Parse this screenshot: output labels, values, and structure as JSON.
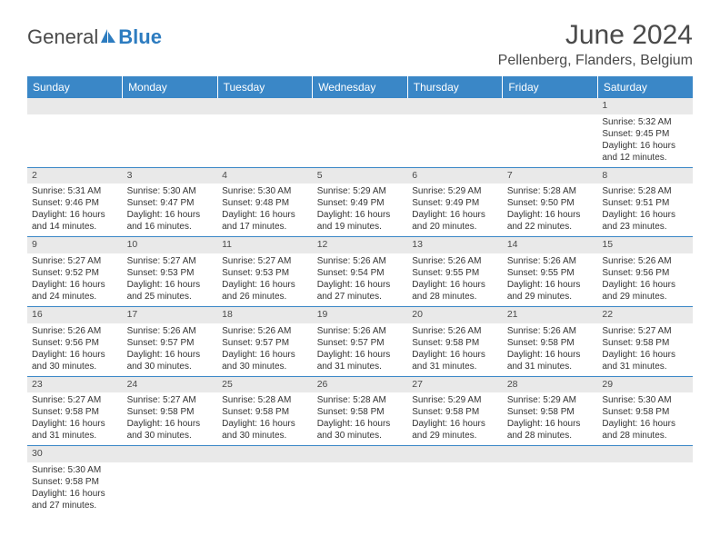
{
  "brand": {
    "part1": "General",
    "part2": "Blue"
  },
  "title": "June 2024",
  "location": "Pellenberg, Flanders, Belgium",
  "colors": {
    "header_bg": "#3a87c7",
    "header_text": "#ffffff",
    "daynum_bg": "#e9e9e9",
    "border": "#3a87c7",
    "brand_accent": "#2d7cc0",
    "text": "#333333"
  },
  "day_headers": [
    "Sunday",
    "Monday",
    "Tuesday",
    "Wednesday",
    "Thursday",
    "Friday",
    "Saturday"
  ],
  "weeks": [
    [
      {
        "n": "",
        "sunrise": "",
        "sunset": "",
        "daylight": ""
      },
      {
        "n": "",
        "sunrise": "",
        "sunset": "",
        "daylight": ""
      },
      {
        "n": "",
        "sunrise": "",
        "sunset": "",
        "daylight": ""
      },
      {
        "n": "",
        "sunrise": "",
        "sunset": "",
        "daylight": ""
      },
      {
        "n": "",
        "sunrise": "",
        "sunset": "",
        "daylight": ""
      },
      {
        "n": "",
        "sunrise": "",
        "sunset": "",
        "daylight": ""
      },
      {
        "n": "1",
        "sunrise": "Sunrise: 5:32 AM",
        "sunset": "Sunset: 9:45 PM",
        "daylight": "Daylight: 16 hours and 12 minutes."
      }
    ],
    [
      {
        "n": "2",
        "sunrise": "Sunrise: 5:31 AM",
        "sunset": "Sunset: 9:46 PM",
        "daylight": "Daylight: 16 hours and 14 minutes."
      },
      {
        "n": "3",
        "sunrise": "Sunrise: 5:30 AM",
        "sunset": "Sunset: 9:47 PM",
        "daylight": "Daylight: 16 hours and 16 minutes."
      },
      {
        "n": "4",
        "sunrise": "Sunrise: 5:30 AM",
        "sunset": "Sunset: 9:48 PM",
        "daylight": "Daylight: 16 hours and 17 minutes."
      },
      {
        "n": "5",
        "sunrise": "Sunrise: 5:29 AM",
        "sunset": "Sunset: 9:49 PM",
        "daylight": "Daylight: 16 hours and 19 minutes."
      },
      {
        "n": "6",
        "sunrise": "Sunrise: 5:29 AM",
        "sunset": "Sunset: 9:49 PM",
        "daylight": "Daylight: 16 hours and 20 minutes."
      },
      {
        "n": "7",
        "sunrise": "Sunrise: 5:28 AM",
        "sunset": "Sunset: 9:50 PM",
        "daylight": "Daylight: 16 hours and 22 minutes."
      },
      {
        "n": "8",
        "sunrise": "Sunrise: 5:28 AM",
        "sunset": "Sunset: 9:51 PM",
        "daylight": "Daylight: 16 hours and 23 minutes."
      }
    ],
    [
      {
        "n": "9",
        "sunrise": "Sunrise: 5:27 AM",
        "sunset": "Sunset: 9:52 PM",
        "daylight": "Daylight: 16 hours and 24 minutes."
      },
      {
        "n": "10",
        "sunrise": "Sunrise: 5:27 AM",
        "sunset": "Sunset: 9:53 PM",
        "daylight": "Daylight: 16 hours and 25 minutes."
      },
      {
        "n": "11",
        "sunrise": "Sunrise: 5:27 AM",
        "sunset": "Sunset: 9:53 PM",
        "daylight": "Daylight: 16 hours and 26 minutes."
      },
      {
        "n": "12",
        "sunrise": "Sunrise: 5:26 AM",
        "sunset": "Sunset: 9:54 PM",
        "daylight": "Daylight: 16 hours and 27 minutes."
      },
      {
        "n": "13",
        "sunrise": "Sunrise: 5:26 AM",
        "sunset": "Sunset: 9:55 PM",
        "daylight": "Daylight: 16 hours and 28 minutes."
      },
      {
        "n": "14",
        "sunrise": "Sunrise: 5:26 AM",
        "sunset": "Sunset: 9:55 PM",
        "daylight": "Daylight: 16 hours and 29 minutes."
      },
      {
        "n": "15",
        "sunrise": "Sunrise: 5:26 AM",
        "sunset": "Sunset: 9:56 PM",
        "daylight": "Daylight: 16 hours and 29 minutes."
      }
    ],
    [
      {
        "n": "16",
        "sunrise": "Sunrise: 5:26 AM",
        "sunset": "Sunset: 9:56 PM",
        "daylight": "Daylight: 16 hours and 30 minutes."
      },
      {
        "n": "17",
        "sunrise": "Sunrise: 5:26 AM",
        "sunset": "Sunset: 9:57 PM",
        "daylight": "Daylight: 16 hours and 30 minutes."
      },
      {
        "n": "18",
        "sunrise": "Sunrise: 5:26 AM",
        "sunset": "Sunset: 9:57 PM",
        "daylight": "Daylight: 16 hours and 30 minutes."
      },
      {
        "n": "19",
        "sunrise": "Sunrise: 5:26 AM",
        "sunset": "Sunset: 9:57 PM",
        "daylight": "Daylight: 16 hours and 31 minutes."
      },
      {
        "n": "20",
        "sunrise": "Sunrise: 5:26 AM",
        "sunset": "Sunset: 9:58 PM",
        "daylight": "Daylight: 16 hours and 31 minutes."
      },
      {
        "n": "21",
        "sunrise": "Sunrise: 5:26 AM",
        "sunset": "Sunset: 9:58 PM",
        "daylight": "Daylight: 16 hours and 31 minutes."
      },
      {
        "n": "22",
        "sunrise": "Sunrise: 5:27 AM",
        "sunset": "Sunset: 9:58 PM",
        "daylight": "Daylight: 16 hours and 31 minutes."
      }
    ],
    [
      {
        "n": "23",
        "sunrise": "Sunrise: 5:27 AM",
        "sunset": "Sunset: 9:58 PM",
        "daylight": "Daylight: 16 hours and 31 minutes."
      },
      {
        "n": "24",
        "sunrise": "Sunrise: 5:27 AM",
        "sunset": "Sunset: 9:58 PM",
        "daylight": "Daylight: 16 hours and 30 minutes."
      },
      {
        "n": "25",
        "sunrise": "Sunrise: 5:28 AM",
        "sunset": "Sunset: 9:58 PM",
        "daylight": "Daylight: 16 hours and 30 minutes."
      },
      {
        "n": "26",
        "sunrise": "Sunrise: 5:28 AM",
        "sunset": "Sunset: 9:58 PM",
        "daylight": "Daylight: 16 hours and 30 minutes."
      },
      {
        "n": "27",
        "sunrise": "Sunrise: 5:29 AM",
        "sunset": "Sunset: 9:58 PM",
        "daylight": "Daylight: 16 hours and 29 minutes."
      },
      {
        "n": "28",
        "sunrise": "Sunrise: 5:29 AM",
        "sunset": "Sunset: 9:58 PM",
        "daylight": "Daylight: 16 hours and 28 minutes."
      },
      {
        "n": "29",
        "sunrise": "Sunrise: 5:30 AM",
        "sunset": "Sunset: 9:58 PM",
        "daylight": "Daylight: 16 hours and 28 minutes."
      }
    ],
    [
      {
        "n": "30",
        "sunrise": "Sunrise: 5:30 AM",
        "sunset": "Sunset: 9:58 PM",
        "daylight": "Daylight: 16 hours and 27 minutes."
      },
      {
        "n": "",
        "sunrise": "",
        "sunset": "",
        "daylight": ""
      },
      {
        "n": "",
        "sunrise": "",
        "sunset": "",
        "daylight": ""
      },
      {
        "n": "",
        "sunrise": "",
        "sunset": "",
        "daylight": ""
      },
      {
        "n": "",
        "sunrise": "",
        "sunset": "",
        "daylight": ""
      },
      {
        "n": "",
        "sunrise": "",
        "sunset": "",
        "daylight": ""
      },
      {
        "n": "",
        "sunrise": "",
        "sunset": "",
        "daylight": ""
      }
    ]
  ]
}
